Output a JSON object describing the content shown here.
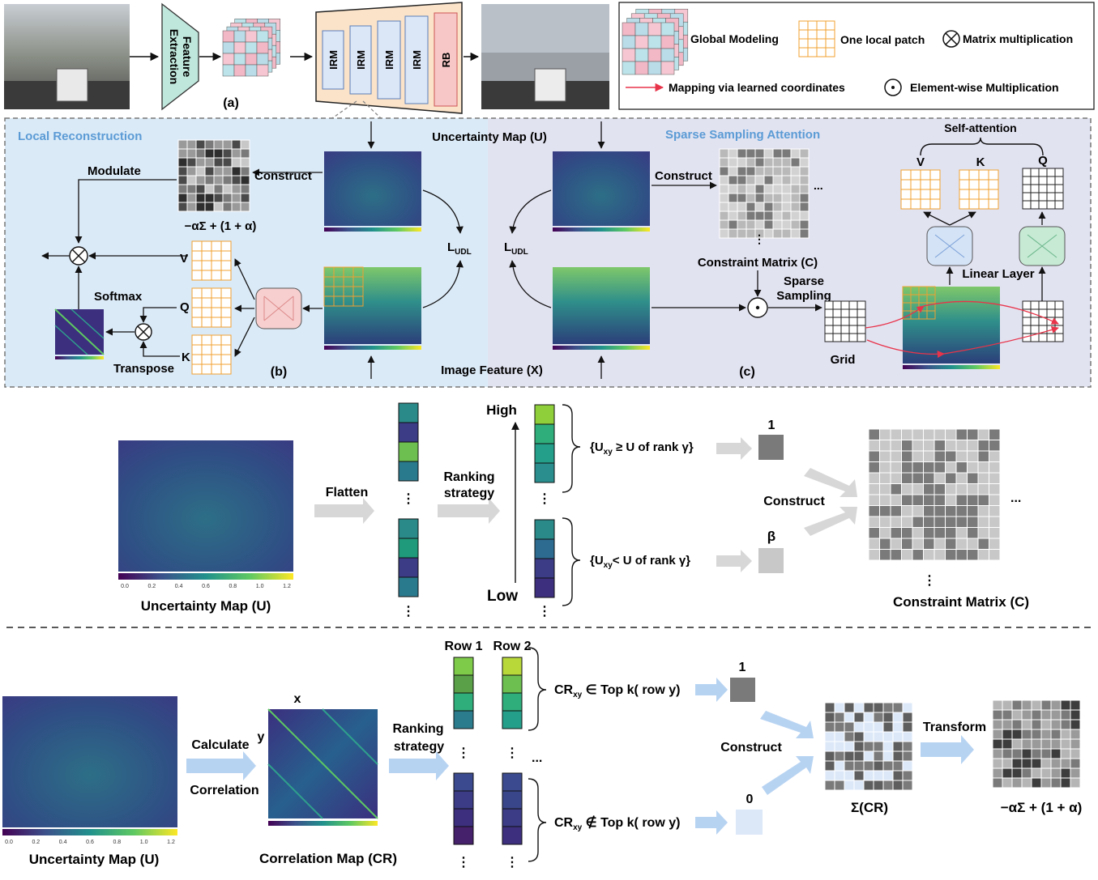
{
  "top": {
    "feature_extraction_1": "Feature",
    "feature_extraction_2": "Extraction",
    "label_a": "(a)",
    "irm": [
      "IRM",
      "IRM",
      "IRM",
      "IRM"
    ],
    "rb": "RB"
  },
  "legend": {
    "global_modeling": "Global Modeling",
    "local_patch": "One local patch",
    "matrix_mult": "Matrix multiplication",
    "mapping": "Mapping via learned coordinates",
    "elementwise": "Element-wise Multiplication"
  },
  "panel_b": {
    "title": "Local Reconstruction",
    "modulate": "Modulate",
    "construct": "Construct",
    "formula": "−αΣ + (1 + α)",
    "v": "V",
    "q": "Q",
    "k": "K",
    "softmax": "Softmax",
    "transpose": "Transpose",
    "loss": "L",
    "loss_sub": "UDL",
    "label": "(b)"
  },
  "center": {
    "uncertainty": "Uncertainty Map (U)",
    "image_feature": "Image Feature (X)"
  },
  "panel_c": {
    "title": "Sparse Sampling Attention",
    "construct": "Construct",
    "loss": "L",
    "loss_sub": "UDL",
    "constraint": "Constraint Matrix (C)",
    "sparse_1": "Sparse",
    "sparse_2": "Sampling",
    "grid": "Grid",
    "self_attention": "Self-attention",
    "v": "V",
    "k": "K",
    "q": "Q",
    "linear": "Linear Layer",
    "label": "(c)"
  },
  "colorbar_ticks": [
    "0.0",
    "0.2",
    "0.4",
    "0.6",
    "0.8",
    "1.0",
    "1.2"
  ],
  "middle": {
    "uncertainty": "Uncertainty Map (U)",
    "flatten": "Flatten",
    "ranking_1": "Ranking",
    "ranking_2": "strategy",
    "high": "High",
    "low": "Low",
    "cond_hi_a": "{U",
    "cond_hi_sub": "xy",
    "cond_hi_b": " ≥ U of rank γ}",
    "cond_lo_a": "{U",
    "cond_lo_sub": "xy",
    "cond_lo_b": "< U of rank γ}",
    "one": "1",
    "beta": "β",
    "construct": "Construct",
    "constraint": "Constraint Matrix (C)",
    "ellipsis": "..."
  },
  "bottom": {
    "uncertainty": "Uncertainty Map (U)",
    "calculate": "Calculate",
    "correlation": "Correlation",
    "x": "x",
    "y": "y",
    "correlation_map": "Correlation Map (CR)",
    "ranking_1": "Ranking",
    "ranking_2": "strategy",
    "row1": "Row 1",
    "row2": "Row 2",
    "cond_top_a": "CR",
    "cond_top_sub": "xy",
    "cond_top_b": " ∈ Top k( row y)",
    "cond_bot_a": "CR",
    "cond_bot_sub": "xy",
    "cond_bot_b": " ∉ Top k( row y)",
    "one": "1",
    "zero": "0",
    "construct": "Construct",
    "sigma": "Σ(CR)",
    "transform": "Transform",
    "formula": "−αΣ + (1 + α)",
    "ellipsis": "..."
  },
  "colors": {
    "panel_b_bg": "#dbeaf7",
    "panel_c_bg": "#e2e3f1",
    "panel_title": "#5b9bd5",
    "orange_grid": "#f0a030",
    "light_arrow": "#cfd0d2",
    "blue_arrow": "#b7d3f2",
    "red_arrow": "#e8344a"
  }
}
